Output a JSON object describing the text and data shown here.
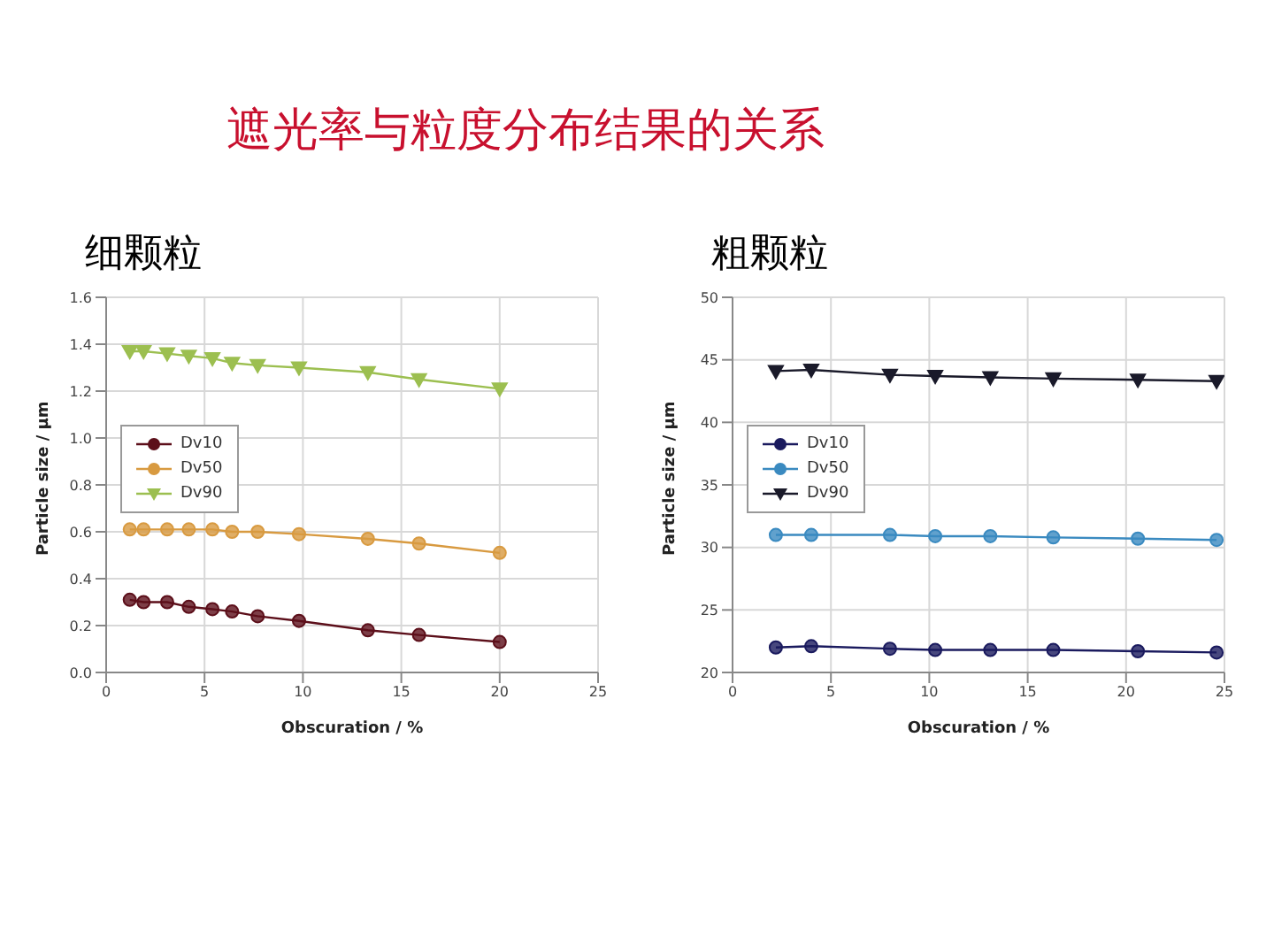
{
  "chart_data": [
    {
      "type": "line",
      "title": "细颗粒",
      "annotations": [
        "遮光率与粒度分布结果的关系"
      ],
      "xlabel": "Obscuration / %",
      "ylabel": "Particle size / µm",
      "x": [
        1.2,
        1.9,
        3.1,
        4.2,
        5.4,
        6.4,
        7.7,
        9.8,
        13.3,
        15.9,
        20
      ],
      "series": [
        {
          "name": "Dv10",
          "color": "#5c0f1a",
          "marker": "circle",
          "values": [
            0.31,
            0.3,
            0.3,
            0.28,
            0.27,
            0.26,
            0.24,
            0.22,
            0.18,
            0.16,
            0.13
          ]
        },
        {
          "name": "Dv50",
          "color": "#d89a40",
          "marker": "circle",
          "values": [
            0.61,
            0.61,
            0.61,
            0.61,
            0.61,
            0.6,
            0.6,
            0.59,
            0.57,
            0.55,
            0.51
          ]
        },
        {
          "name": "Dv90",
          "color": "#9cbf50",
          "marker": "triangle",
          "values": [
            1.37,
            1.37,
            1.36,
            1.35,
            1.34,
            1.32,
            1.31,
            1.3,
            1.28,
            1.25,
            1.21
          ]
        }
      ],
      "xlim": [
        0,
        25
      ],
      "xticks": [
        0,
        5,
        10,
        15,
        20,
        25
      ],
      "ylim": [
        0,
        1.6
      ],
      "yticks": [
        {
          "value": 0,
          "label": "0.0"
        },
        0.2,
        0.4,
        0.6,
        0.8,
        {
          "value": 1,
          "label": "1.0"
        },
        1.2,
        1.4,
        1.6
      ],
      "grid": true,
      "legend": "left"
    },
    {
      "type": "line",
      "title": "粗颗粒",
      "xlabel": "Obscuration / %",
      "ylabel": "Particle size / µm",
      "x": [
        2.2,
        4.0,
        8.0,
        10.3,
        13.1,
        16.3,
        20.6,
        24.6
      ],
      "series": [
        {
          "name": "Dv10",
          "color": "#1a1a5e",
          "marker": "circle",
          "values": [
            22.0,
            22.1,
            21.9,
            21.8,
            21.8,
            21.8,
            21.7,
            21.6
          ]
        },
        {
          "name": "Dv50",
          "color": "#3a8ac0",
          "marker": "circle",
          "values": [
            31.0,
            31.0,
            31.0,
            30.9,
            30.9,
            30.8,
            30.7,
            30.6
          ]
        },
        {
          "name": "Dv90",
          "color": "#1a1a2a",
          "marker": "triangle",
          "values": [
            44.1,
            44.2,
            43.8,
            43.7,
            43.6,
            43.5,
            43.4,
            43.3
          ]
        }
      ],
      "xlim": [
        0,
        25
      ],
      "xticks": [
        0,
        5,
        10,
        15,
        20,
        25
      ],
      "ylim": [
        20,
        50
      ],
      "yticks": [
        20,
        25,
        30,
        35,
        40,
        45,
        50
      ],
      "grid": true,
      "legend": "left"
    }
  ]
}
